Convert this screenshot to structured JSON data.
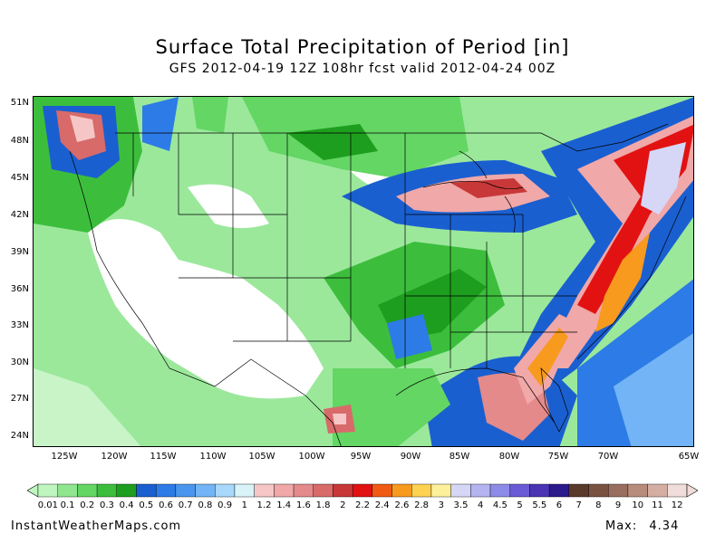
{
  "title": "Surface Total Precipitation of Period [in]",
  "subtitle": "GFS 2012-04-19 12Z 108hr fcst valid 2012-04-24 00Z",
  "lat_labels": [
    "51N",
    "48N",
    "45N",
    "42N",
    "39N",
    "36N",
    "33N",
    "30N",
    "27N",
    "24N"
  ],
  "lon_labels": [
    "125W",
    "120W",
    "115W",
    "110W",
    "105W",
    "100W",
    "95W",
    "90W",
    "85W",
    "80W",
    "75W",
    "70W",
    "65W"
  ],
  "colorbar": {
    "labels": [
      "0.01",
      "0.1",
      "0.2",
      "0.3",
      "0.4",
      "0.5",
      "0.6",
      "0.7",
      "0.8",
      "0.9",
      "1",
      "1.2",
      "1.4",
      "1.6",
      "1.8",
      "2",
      "2.2",
      "2.4",
      "2.6",
      "2.8",
      "3",
      "3.5",
      "4",
      "4.5",
      "5",
      "5.5",
      "6",
      "7",
      "8",
      "9",
      "10",
      "11",
      "12"
    ],
    "colors": [
      "#bff5bf",
      "#8fe68f",
      "#63d663",
      "#3cbe3c",
      "#1e9e1e",
      "#1a5fd0",
      "#2d7be6",
      "#4a96ee",
      "#72b4f5",
      "#a8d8fa",
      "#d8f4f8",
      "#f6c6c6",
      "#f0a8a8",
      "#e48a8a",
      "#d86a6a",
      "#c83838",
      "#e21212",
      "#f05a12",
      "#f89a1e",
      "#fcd250",
      "#fdf09a",
      "#d6d6f6",
      "#b4b4f0",
      "#8c8ce8",
      "#6a5ad6",
      "#4a34b4",
      "#2a1a8c",
      "#5a3a2a",
      "#7a5242",
      "#9a6e5e",
      "#b88c7c",
      "#d4aea2",
      "#f0dcd8"
    ]
  },
  "footer": {
    "site": "InstantWeatherMaps.com",
    "max_label": "Max:",
    "max_value": "4.34"
  }
}
